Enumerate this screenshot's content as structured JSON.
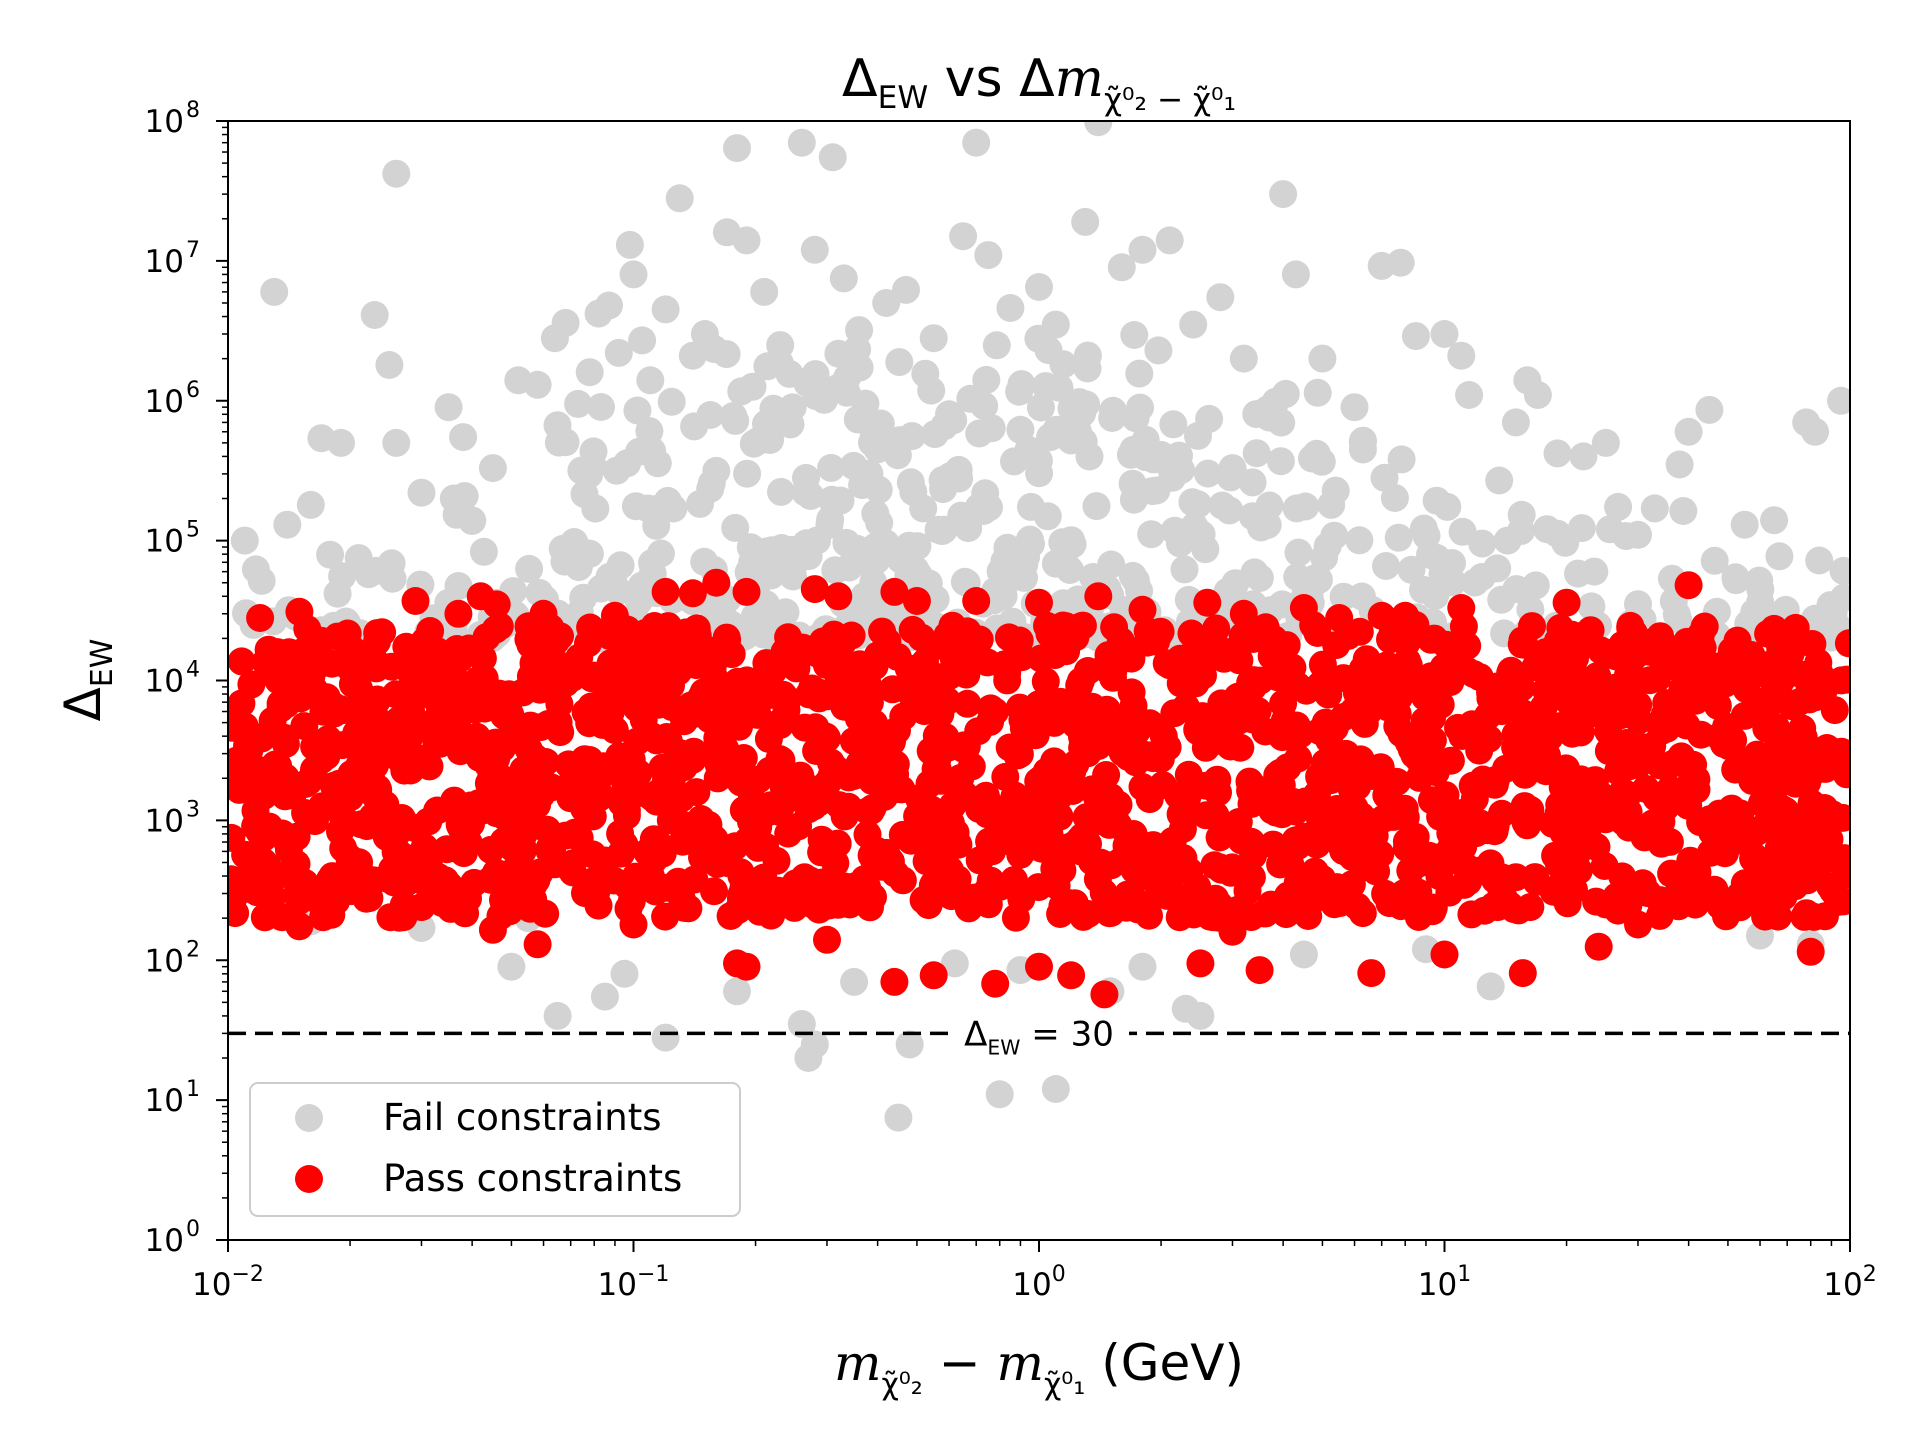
{
  "chart_data": {
    "type": "scatter",
    "title": {
      "prefix": "Δ",
      "prefix_sub": "EW",
      "mid": " vs Δ",
      "math": "m",
      "sub": "χ̃⁰₂ − χ̃⁰₁"
    },
    "xlabel": {
      "m1": "m",
      "sub1": "χ̃⁰₂",
      "minus": " − ",
      "m2": "m",
      "sub2": "χ̃⁰₁",
      "unit": " (GeV)"
    },
    "ylabel": {
      "base": "Δ",
      "sub": "EW"
    },
    "x_scale": "log",
    "y_scale": "log",
    "xlim": [
      0.01,
      100
    ],
    "ylim": [
      1,
      100000000
    ],
    "x_ticks": [
      {
        "value": 0.01,
        "base": "10",
        "exp": "−2"
      },
      {
        "value": 0.1,
        "base": "10",
        "exp": "−1"
      },
      {
        "value": 1,
        "base": "10",
        "exp": "0"
      },
      {
        "value": 10,
        "base": "10",
        "exp": "1"
      },
      {
        "value": 100,
        "base": "10",
        "exp": "2"
      }
    ],
    "y_ticks": [
      {
        "value": 1,
        "base": "10",
        "exp": "0"
      },
      {
        "value": 10,
        "base": "10",
        "exp": "1"
      },
      {
        "value": 100,
        "base": "10",
        "exp": "2"
      },
      {
        "value": 1000,
        "base": "10",
        "exp": "3"
      },
      {
        "value": 10000,
        "base": "10",
        "exp": "4"
      },
      {
        "value": 100000,
        "base": "10",
        "exp": "5"
      },
      {
        "value": 1000000,
        "base": "10",
        "exp": "6"
      },
      {
        "value": 10000000,
        "base": "10",
        "exp": "7"
      },
      {
        "value": 100000000,
        "base": "10",
        "exp": "8"
      }
    ],
    "grid": false,
    "legend_placement": "lower-left",
    "series": [
      {
        "name": "Fail constraints",
        "color": "#d3d3d3",
        "points": [
          [
            0.026,
            42000000
          ],
          [
            0.013,
            6000000
          ],
          [
            0.023,
            4100000
          ],
          [
            0.025,
            1800000
          ],
          [
            0.017,
            540000
          ],
          [
            0.019,
            500000
          ],
          [
            0.026,
            500000
          ],
          [
            0.035,
            900000
          ],
          [
            0.038,
            550000
          ],
          [
            0.045,
            330000
          ],
          [
            0.052,
            1400000
          ],
          [
            0.058,
            1300000
          ],
          [
            0.064,
            2800000
          ],
          [
            0.068,
            3600000
          ],
          [
            0.073,
            950000
          ],
          [
            0.078,
            1600000
          ],
          [
            0.082,
            4200000
          ],
          [
            0.087,
            4800000
          ],
          [
            0.092,
            2200000
          ],
          [
            0.098,
            13000000
          ],
          [
            0.1,
            8000000
          ],
          [
            0.105,
            2700000
          ],
          [
            0.11,
            1400000
          ],
          [
            0.12,
            4500000
          ],
          [
            0.13,
            28000000
          ],
          [
            0.14,
            2100000
          ],
          [
            0.15,
            3000000
          ],
          [
            0.17,
            16000000
          ],
          [
            0.18,
            64000000
          ],
          [
            0.19,
            14000000
          ],
          [
            0.21,
            6000000
          ],
          [
            0.23,
            2500000
          ],
          [
            0.26,
            70000000
          ],
          [
            0.28,
            12000000
          ],
          [
            0.31,
            55000000
          ],
          [
            0.33,
            7500000
          ],
          [
            0.36,
            3200000
          ],
          [
            0.42,
            5000000
          ],
          [
            0.47,
            6200000
          ],
          [
            0.55,
            2800000
          ],
          [
            0.65,
            15000000
          ],
          [
            0.7,
            70000000
          ],
          [
            0.75,
            11000000
          ],
          [
            0.85,
            4600000
          ],
          [
            1.0,
            6500000
          ],
          [
            1.1,
            3500000
          ],
          [
            1.3,
            19000000
          ],
          [
            1.4,
            98000000
          ],
          [
            1.6,
            9000000
          ],
          [
            1.8,
            12000000
          ],
          [
            2.1,
            14000000
          ],
          [
            2.4,
            3500000
          ],
          [
            2.8,
            5500000
          ],
          [
            3.2,
            2000000
          ],
          [
            4.0,
            30000000
          ],
          [
            4.3,
            8000000
          ],
          [
            5.0,
            2000000
          ],
          [
            6.0,
            900000
          ],
          [
            7.0,
            9200000
          ],
          [
            7.8,
            9700000
          ],
          [
            8.5,
            2900000
          ],
          [
            10.0,
            3000000
          ],
          [
            11.0,
            2100000
          ],
          [
            11.5,
            1100000
          ],
          [
            15.0,
            700000
          ],
          [
            16.0,
            1400000
          ],
          [
            17.0,
            1100000
          ],
          [
            19.0,
            420000
          ],
          [
            22.0,
            400000
          ],
          [
            25.0,
            500000
          ],
          [
            30.0,
            110000
          ],
          [
            33.0,
            170000
          ],
          [
            38.0,
            350000
          ],
          [
            40.0,
            600000
          ],
          [
            45.0,
            860000
          ],
          [
            55.0,
            130000
          ],
          [
            65.0,
            140000
          ],
          [
            78.0,
            700000
          ],
          [
            82.0,
            600000
          ],
          [
            95.0,
            1000000
          ],
          [
            0.011,
            100000
          ],
          [
            0.014,
            130000
          ],
          [
            0.016,
            180000
          ],
          [
            0.021,
            75000
          ],
          [
            0.03,
            220000
          ],
          [
            0.4,
            450000
          ],
          [
            0.6,
            800000
          ],
          [
            0.9,
            620000
          ],
          [
            1.2,
            520000
          ],
          [
            2.0,
            410000
          ],
          [
            3.0,
            330000
          ],
          [
            0.065,
            40
          ],
          [
            0.05,
            90
          ],
          [
            0.085,
            55
          ],
          [
            0.095,
            80
          ],
          [
            0.18,
            60
          ],
          [
            0.26,
            35
          ],
          [
            0.27,
            20
          ],
          [
            0.28,
            25
          ],
          [
            0.48,
            25
          ],
          [
            0.8,
            11
          ],
          [
            1.1,
            12
          ],
          [
            0.45,
            7.5
          ],
          [
            1.5,
            60
          ],
          [
            2.3,
            45
          ],
          [
            2.5,
            40
          ],
          [
            13.0,
            65
          ],
          [
            0.12,
            28
          ],
          [
            0.35,
            70
          ],
          [
            0.62,
            95
          ],
          [
            0.9,
            85
          ],
          [
            1.8,
            90
          ],
          [
            4.5,
            110
          ],
          [
            9.0,
            120
          ],
          [
            0.016,
            190
          ],
          [
            0.03,
            170
          ],
          [
            0.055,
            200
          ],
          [
            80.0,
            130
          ],
          [
            60.0,
            150
          ]
        ],
        "cloud": [
          [
            0.01,
            0.025,
            20000,
            80000,
            18
          ],
          [
            0.025,
            0.06,
            20000,
            250000,
            26
          ],
          [
            0.06,
            0.15,
            20000,
            1000000,
            60
          ],
          [
            0.15,
            0.5,
            20000,
            2500000,
            130
          ],
          [
            0.5,
            2.0,
            20000,
            3000000,
            150
          ],
          [
            2.0,
            5.0,
            20000,
            1500000,
            80
          ],
          [
            5.0,
            15.0,
            20000,
            600000,
            45
          ],
          [
            15.0,
            40.0,
            20000,
            200000,
            30
          ],
          [
            40.0,
            100.0,
            20000,
            100000,
            24
          ]
        ]
      },
      {
        "name": "Pass constraints",
        "color": "#ff0000",
        "points": [
          [
            0.012,
            28000
          ],
          [
            0.015,
            31000
          ],
          [
            0.029,
            37000
          ],
          [
            0.037,
            30000
          ],
          [
            0.042,
            40000
          ],
          [
            0.046,
            35000
          ],
          [
            0.06,
            30000
          ],
          [
            0.09,
            29000
          ],
          [
            0.12,
            43000
          ],
          [
            0.14,
            42000
          ],
          [
            0.16,
            50000
          ],
          [
            0.19,
            43000
          ],
          [
            0.28,
            45000
          ],
          [
            0.32,
            40000
          ],
          [
            0.44,
            43000
          ],
          [
            0.5,
            37000
          ],
          [
            0.7,
            37000
          ],
          [
            1.0,
            36000
          ],
          [
            1.4,
            40000
          ],
          [
            1.8,
            32000
          ],
          [
            2.6,
            36000
          ],
          [
            3.2,
            30000
          ],
          [
            4.5,
            33000
          ],
          [
            5.5,
            28000
          ],
          [
            7.0,
            29000
          ],
          [
            8.0,
            29000
          ],
          [
            11.0,
            33000
          ],
          [
            20.0,
            36000
          ],
          [
            40.0,
            48000
          ],
          [
            0.015,
            175
          ],
          [
            0.045,
            165
          ],
          [
            0.058,
            130
          ],
          [
            0.18,
            95
          ],
          [
            0.19,
            90
          ],
          [
            0.44,
            70
          ],
          [
            0.55,
            78
          ],
          [
            0.78,
            68
          ],
          [
            1.0,
            90
          ],
          [
            1.2,
            78
          ],
          [
            1.45,
            57
          ],
          [
            2.5,
            95
          ],
          [
            3.5,
            85
          ],
          [
            6.6,
            81
          ],
          [
            10.0,
            110
          ],
          [
            15.6,
            81
          ],
          [
            24.0,
            125
          ],
          [
            80.0,
            115
          ],
          [
            0.03,
            240
          ],
          [
            0.1,
            180
          ],
          [
            0.3,
            140
          ],
          [
            3.0,
            160
          ],
          [
            30.0,
            180
          ]
        ],
        "band": [
          0.01,
          100,
          200,
          25000,
          1800
        ]
      }
    ],
    "reference_lines": [
      {
        "axis": "y",
        "value": 30,
        "style": "dashed",
        "color": "#000000",
        "label_base": "Δ",
        "label_sub": "EW",
        "label_rest": " = 30"
      }
    ]
  }
}
